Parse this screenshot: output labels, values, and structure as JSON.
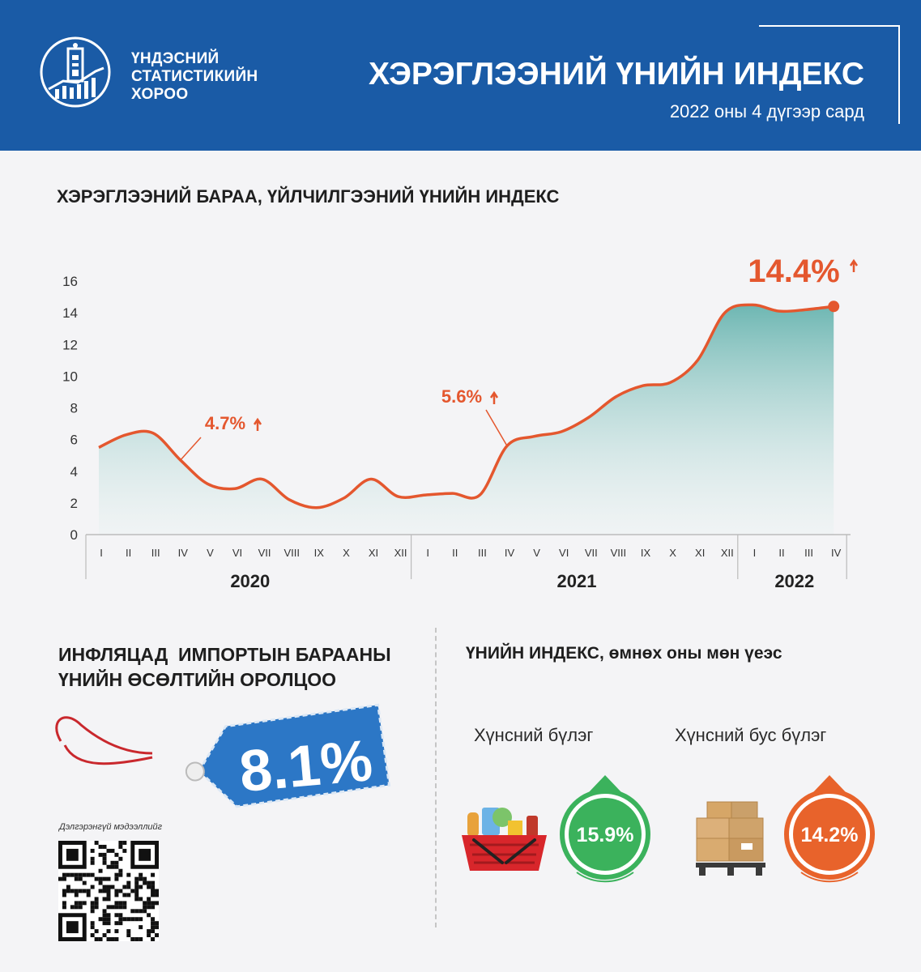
{
  "header": {
    "org_line1": "ҮНДЭСНИЙ",
    "org_line2": "СТАТИСТИКИЙН",
    "org_line3": "ХОРОО",
    "title": "ХЭРЭГЛЭЭНИЙ ҮНИЙН ИНДЕКС",
    "subtitle": "2022 оны 4 дүгээр сард"
  },
  "colors": {
    "header_bg": "#1a5ba6",
    "line": "#e4572e",
    "area": "#8cc6c1",
    "green": "#3bb25c",
    "orange": "#e8632b",
    "tag_blue": "#2c77c6"
  },
  "chart_section": {
    "title": "ХЭРЭГЛЭЭНИЙ БАРАА, ҮЙЛЧИЛГЭЭНИЙ ҮНИЙН ИНДЕКС"
  },
  "chart_data": {
    "type": "area",
    "title": "ХЭРЭГЛЭЭНИЙ БАРАА, ҮЙЛЧИЛГЭЭНИЙ ҮНИЙН ИНДЕКС",
    "ylim": [
      0,
      16
    ],
    "yticks": [
      "0",
      "2",
      "4",
      "6",
      "8",
      "10",
      "12",
      "14",
      "16"
    ],
    "categories": [
      "I",
      "II",
      "III",
      "IV",
      "V",
      "VI",
      "VII",
      "VIII",
      "IX",
      "X",
      "XI",
      "XII",
      "I",
      "II",
      "III",
      "IV",
      "V",
      "VI",
      "VII",
      "VIII",
      "IX",
      "X",
      "XI",
      "XII",
      "I",
      "II",
      "III",
      "IV"
    ],
    "years": [
      {
        "label": "2020",
        "months": 12
      },
      {
        "label": "2021",
        "months": 12
      },
      {
        "label": "2022",
        "months": 4
      }
    ],
    "values": [
      5.5,
      6.3,
      6.4,
      4.7,
      3.2,
      2.9,
      3.5,
      2.2,
      1.7,
      2.3,
      3.5,
      2.4,
      2.5,
      2.6,
      2.5,
      5.6,
      6.2,
      6.5,
      7.4,
      8.7,
      9.4,
      9.6,
      11.0,
      14.0,
      14.5,
      14.1,
      14.2,
      14.4
    ],
    "annotations": [
      {
        "label": "4.7%",
        "index": 3
      },
      {
        "label": "5.6%",
        "index": 15
      },
      {
        "label": "14.4%",
        "index": 27
      }
    ],
    "grid": false
  },
  "import": {
    "title_line1": "ИНФЛЯЦАД  ИМПОРТЫН БАРААНЫ",
    "title_line2": "ҮНИЙН ӨСӨЛТИЙН ОРОЛЦОО",
    "value": "8.1%",
    "qr_label": "Дэлгэрэнгүй мэдээллийг"
  },
  "index_groups": {
    "title": "ҮНИЙН ИНДЕКС, өмнөх оны мөн үеэс",
    "food_label": "Хүнсний бүлэг",
    "food_value": "15.9%",
    "nonfood_label": "Хүнсний бус бүлэг",
    "nonfood_value": "14.2%"
  },
  "icons": [
    "emblem-icon",
    "grocery-basket-icon",
    "cardboard-boxes-icon",
    "qr-code-icon",
    "price-tag-icon",
    "up-arrow-icon"
  ]
}
